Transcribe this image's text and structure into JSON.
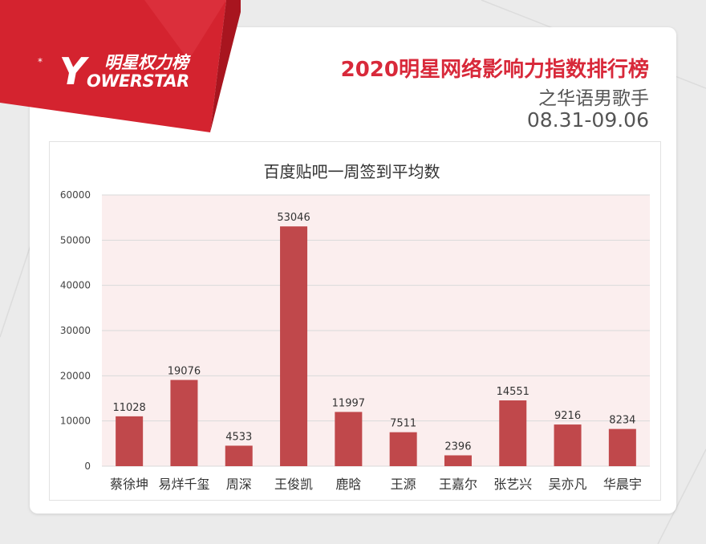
{
  "brand": {
    "logo_letter": "Y",
    "logo_cn": "明星权力榜",
    "logo_en": "OWERSTAR",
    "star": "*"
  },
  "header": {
    "title": "2020明星网络影响力指数排行榜",
    "subtitle": "之华语男歌手",
    "date_range": "08.31-09.06"
  },
  "colors": {
    "banner_red": "#d4232f",
    "title_red": "#d8293a",
    "bar": "#c0484b",
    "plot_bg": "#fbeeee"
  },
  "chart_data": {
    "type": "bar",
    "title": "百度贴吧一周签到平均数",
    "xlabel": "",
    "ylabel": "",
    "ylim": [
      0,
      60000
    ],
    "yticks": [
      "0",
      "10000",
      "20000",
      "30000",
      "40000",
      "50000",
      "60000"
    ],
    "categories": [
      "蔡徐坤",
      "易烊千玺",
      "周深",
      "王俊凯",
      "鹿晗",
      "王源",
      "王嘉尔",
      "张艺兴",
      "吴亦凡",
      "华晨宇"
    ],
    "values": [
      11028,
      19076,
      4533,
      53046,
      11997,
      7511,
      2396,
      14551,
      9216,
      8234
    ],
    "grid": true,
    "legend": "none",
    "data_labels": true
  }
}
